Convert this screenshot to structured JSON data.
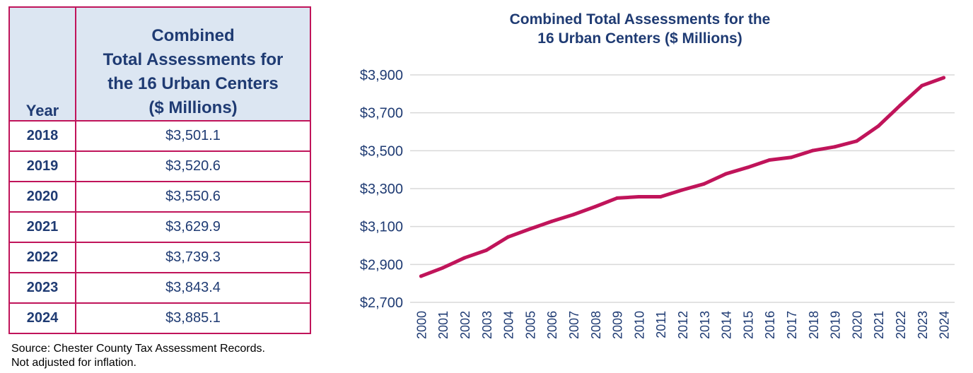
{
  "table": {
    "year_header": "Year",
    "value_header_lines": [
      "Combined",
      "Total Assessments for",
      "the 16 Urban Centers",
      "($ Millions)"
    ],
    "rows": [
      {
        "year": "2018",
        "value": "$3,501.1"
      },
      {
        "year": "2019",
        "value": "$3,520.6"
      },
      {
        "year": "2020",
        "value": "$3,550.6"
      },
      {
        "year": "2021",
        "value": "$3,629.9"
      },
      {
        "year": "2022",
        "value": "$3,739.3"
      },
      {
        "year": "2023",
        "value": "$3,843.4"
      },
      {
        "year": "2024",
        "value": "$3,885.1"
      }
    ]
  },
  "source": {
    "line1": "Source: Chester County Tax Assessment Records.",
    "line2": "Not adjusted for inflation."
  },
  "colors": {
    "line": "#c0145a",
    "border": "#c0145a",
    "header_bg": "#dce6f2",
    "title": "#1f3b73",
    "grid": "#d9d9d9"
  },
  "chart_data": {
    "type": "line",
    "title_lines": [
      "Combined Total Assessments for the",
      "16 Urban Centers ($ Millions)"
    ],
    "xlabel": "",
    "ylabel": "",
    "categories": [
      "2000",
      "2001",
      "2002",
      "2003",
      "2004",
      "2005",
      "2006",
      "2007",
      "2008",
      "2009",
      "2010",
      "2011",
      "2012",
      "2013",
      "2014",
      "2015",
      "2016",
      "2017",
      "2018",
      "2019",
      "2020",
      "2021",
      "2022",
      "2023",
      "2024"
    ],
    "series": [
      {
        "name": "Combined Total Assessments",
        "values": [
          2838,
          2882,
          2935,
          2975,
          3045,
          3087,
          3127,
          3163,
          3205,
          3250,
          3257,
          3257,
          3293,
          3325,
          3378,
          3412,
          3451,
          3465,
          3501.1,
          3520.6,
          3550.6,
          3629.9,
          3739.3,
          3843.4,
          3885.1
        ]
      }
    ],
    "ylim": [
      2700,
      3900
    ],
    "yticks": [
      2700,
      2900,
      3100,
      3300,
      3500,
      3700,
      3900
    ],
    "ytick_labels": [
      "$2,700",
      "$2,900",
      "$3,100",
      "$3,300",
      "$3,500",
      "$3,700",
      "$3,900"
    ],
    "grid": true,
    "legend": "none"
  }
}
